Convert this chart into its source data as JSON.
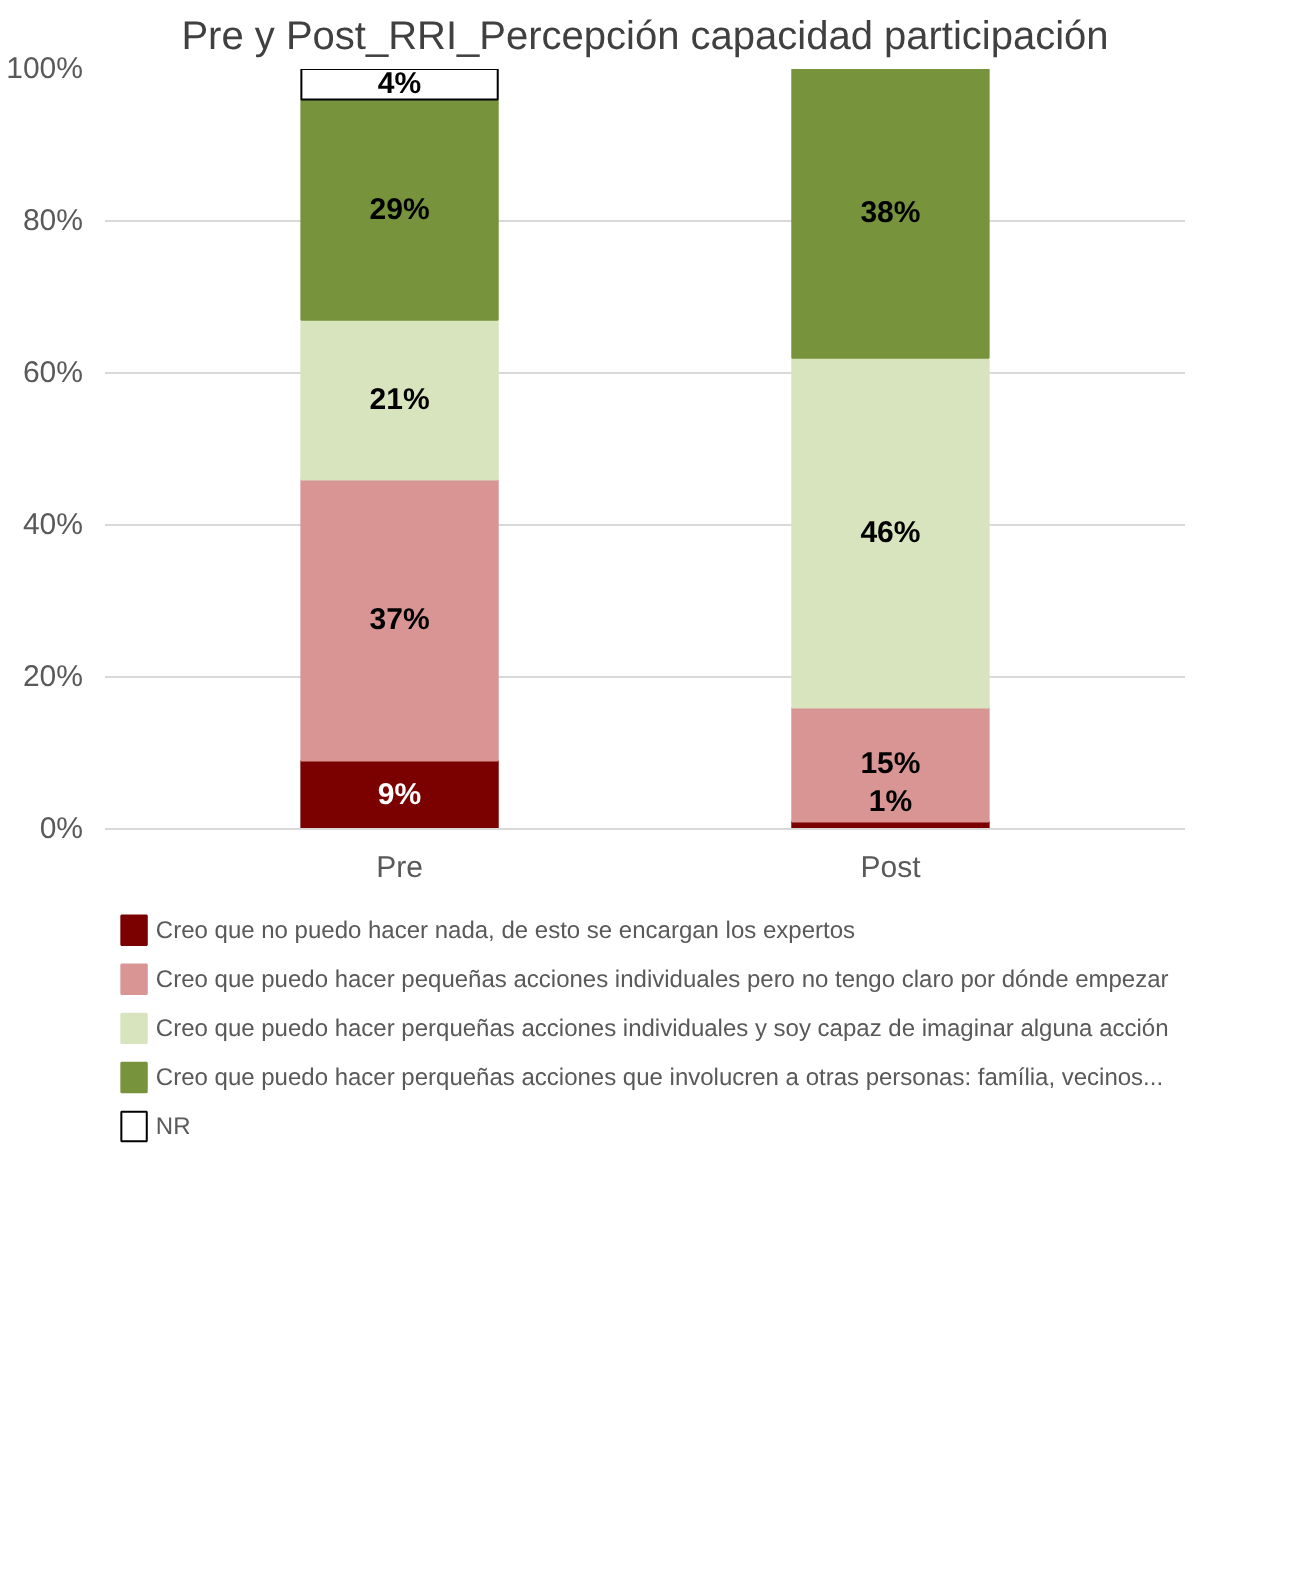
{
  "chart_data": {
    "type": "bar",
    "title": "Pre y Post_RRI_Percepción capacidad participación",
    "categories": [
      "Pre",
      "Post"
    ],
    "stacked": true,
    "series": [
      {
        "name": "Creo que no puedo hacer nada, de esto se encargan los expertos",
        "color": "#7b0000",
        "values": [
          9,
          1
        ],
        "value_labels": [
          "9%",
          "1%"
        ]
      },
      {
        "name": "Creo que puedo hacer pequeñas acciones individuales pero no tengo claro por dónde empezar",
        "color": "#d99594",
        "values": [
          37,
          15
        ],
        "value_labels": [
          "37%",
          "15%"
        ]
      },
      {
        "name": "Creo que puedo hacer perqueñas acciones individuales y soy capaz de imaginar alguna acción",
        "color": "#d7e4bd",
        "values": [
          21,
          46
        ],
        "value_labels": [
          "21%",
          "46%"
        ]
      },
      {
        "name": "Creo que puedo hacer perqueñas acciones que involucren a otras personas: família, vecinos...",
        "color": "#77933c",
        "values": [
          29,
          38
        ],
        "value_labels": [
          "29%",
          "38%"
        ]
      },
      {
        "name": "NR",
        "color": "#ffffff",
        "values": [
          4,
          null
        ],
        "value_labels": [
          "4%",
          null
        ]
      }
    ],
    "ylim": [
      0,
      100
    ],
    "yticks": [
      {
        "value": 0,
        "label": "0%"
      },
      {
        "value": 20,
        "label": "20%"
      },
      {
        "value": 40,
        "label": "40%"
      },
      {
        "value": 60,
        "label": "60%"
      },
      {
        "value": 80,
        "label": "80%"
      },
      {
        "value": 100,
        "label": "100%"
      }
    ],
    "grid": "y",
    "legend": "bottom"
  }
}
